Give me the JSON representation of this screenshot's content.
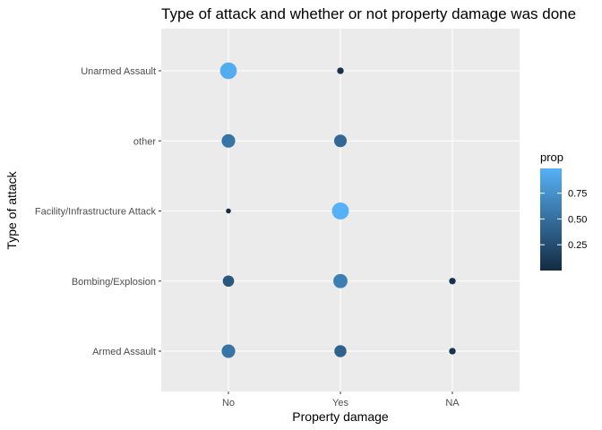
{
  "chart_data": {
    "type": "scatter",
    "title": "Type of attack and whether or not property damage was done",
    "xlabel": "Property damage",
    "ylabel": "Type of attack",
    "x_categories": [
      "No",
      "Yes",
      "NA"
    ],
    "y_categories": [
      "Armed Assault",
      "Bombing/Explosion",
      "Facility/Infrastructure Attack",
      "other",
      "Unarmed Assault"
    ],
    "grid": true,
    "points": [
      {
        "x": "No",
        "y": "Unarmed Assault",
        "prop": 0.95
      },
      {
        "x": "Yes",
        "y": "Unarmed Assault",
        "prop": 0.05
      },
      {
        "x": "No",
        "y": "other",
        "prop": 0.55
      },
      {
        "x": "Yes",
        "y": "other",
        "prop": 0.45
      },
      {
        "x": "No",
        "y": "Facility/Infrastructure Attack",
        "prop": 0.01
      },
      {
        "x": "Yes",
        "y": "Facility/Infrastructure Attack",
        "prop": 0.99
      },
      {
        "x": "No",
        "y": "Bombing/Explosion",
        "prop": 0.33
      },
      {
        "x": "Yes",
        "y": "Bombing/Explosion",
        "prop": 0.62
      },
      {
        "x": "NA",
        "y": "Bombing/Explosion",
        "prop": 0.05
      },
      {
        "x": "No",
        "y": "Armed Assault",
        "prop": 0.55
      },
      {
        "x": "Yes",
        "y": "Armed Assault",
        "prop": 0.4
      },
      {
        "x": "NA",
        "y": "Armed Assault",
        "prop": 0.05
      }
    ],
    "legend": {
      "title": "prop",
      "placement": "right",
      "ticks": [
        0.25,
        0.5,
        0.75
      ],
      "tick_labels": [
        "0.25",
        "0.50",
        "0.75"
      ],
      "range": [
        0.0,
        0.99
      ],
      "color_low": "#132B43",
      "color_high": "#56B1F7"
    },
    "colors": {
      "panel_bg": "#EBEBEB",
      "grid": "#FFFFFF"
    }
  }
}
